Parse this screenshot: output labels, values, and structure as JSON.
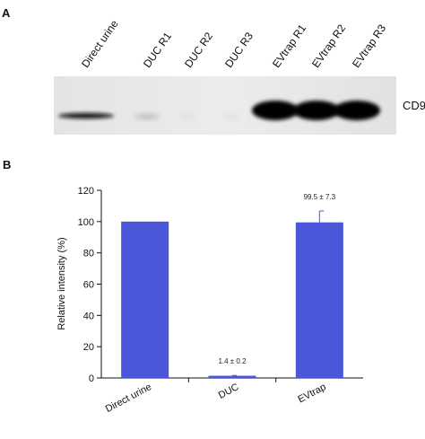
{
  "panels": {
    "a_label": "A",
    "b_label": "B"
  },
  "blot": {
    "lanes": [
      {
        "label": "Direct urine",
        "intensity": "medium"
      },
      {
        "label": "DUC R1",
        "intensity": "trace"
      },
      {
        "label": "DUC R2",
        "intensity": "none"
      },
      {
        "label": "DUC R3",
        "intensity": "none"
      },
      {
        "label": "EVtrap R1",
        "intensity": "strong"
      },
      {
        "label": "EVtrap R2",
        "intensity": "strong"
      },
      {
        "label": "EVtrap R3",
        "intensity": "strong"
      }
    ],
    "band_label": "CD9"
  },
  "chart_data": {
    "type": "bar",
    "categories": [
      "Direct urine",
      "DUC",
      "EVtrap"
    ],
    "values": [
      100,
      1.4,
      99.5
    ],
    "errors": [
      0,
      0.2,
      7.3
    ],
    "value_labels": [
      "",
      "1.4 ± 0.2",
      "99.5 ± 7.3"
    ],
    "xlabel": "",
    "ylabel": "Relative intensity (%)",
    "ylim": [
      0,
      120
    ],
    "yticks": [
      0,
      20,
      40,
      60,
      80,
      100,
      120
    ],
    "grid": false,
    "legend": "none",
    "bar_color": "#4a57d8",
    "error_bar_color": "#5a5a9a"
  }
}
